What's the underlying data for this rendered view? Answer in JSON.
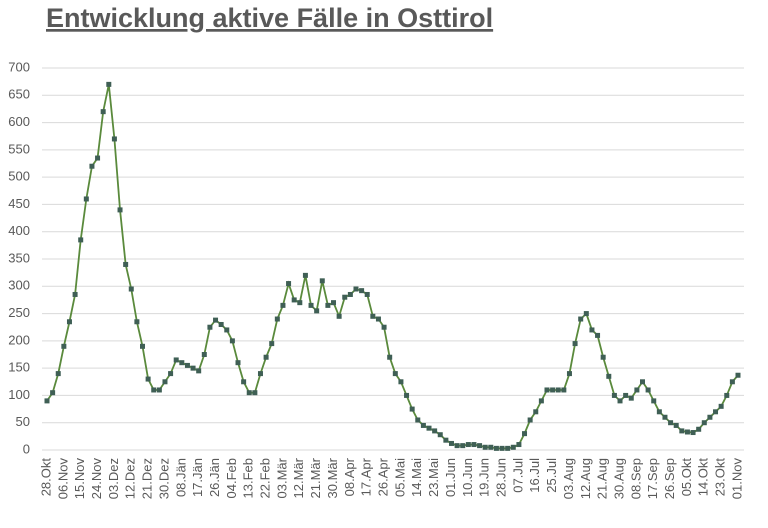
{
  "chart_data": {
    "type": "line",
    "title": "Entwicklung aktive Fälle in Osttirol",
    "categories": [
      "28.Okt",
      null,
      null,
      "06.Nov",
      null,
      null,
      "15.Nov",
      null,
      null,
      "24.Nov",
      null,
      null,
      "03.Dez",
      null,
      null,
      "12.Dez",
      null,
      null,
      "21.Dez",
      null,
      null,
      "30.Dez",
      null,
      null,
      "08.Jän",
      null,
      null,
      "17.Jän",
      null,
      null,
      "26.Jän",
      null,
      null,
      "04.Feb",
      null,
      null,
      "13.Feb",
      null,
      null,
      "22.Feb",
      null,
      null,
      "03.Mär",
      null,
      null,
      "12.Mär",
      null,
      null,
      "21.Mär",
      null,
      null,
      "30.Mär",
      null,
      null,
      "08.Apr",
      null,
      null,
      "17.Apr",
      null,
      null,
      "26.Apr",
      null,
      null,
      "05.Mai",
      null,
      null,
      "14.Mai",
      null,
      null,
      "23.Mai",
      null,
      null,
      "01.Jun",
      null,
      null,
      "10.Jun",
      null,
      null,
      "19.Jun",
      null,
      null,
      "28.Jun",
      null,
      null,
      "07.Jul",
      null,
      null,
      "16.Jul",
      null,
      null,
      "25.Jul",
      null,
      null,
      "03.Aug",
      null,
      null,
      "12.Aug",
      null,
      null,
      "21.Aug",
      null,
      null,
      "30.Aug",
      null,
      null,
      "08.Sep",
      null,
      null,
      "17.Sep",
      null,
      null,
      "26.Sep",
      null,
      null,
      "05.Okt",
      null,
      null,
      "14.Okt",
      null,
      null,
      "23.Okt",
      null,
      null,
      "01.Nov"
    ],
    "values": [
      90,
      105,
      140,
      190,
      235,
      285,
      385,
      460,
      520,
      535,
      620,
      670,
      570,
      440,
      340,
      295,
      235,
      190,
      130,
      110,
      110,
      125,
      140,
      165,
      160,
      155,
      150,
      145,
      175,
      225,
      238,
      230,
      220,
      200,
      160,
      125,
      105,
      105,
      140,
      170,
      195,
      240,
      265,
      305,
      275,
      270,
      320,
      265,
      255,
      310,
      265,
      270,
      245,
      280,
      285,
      295,
      292,
      285,
      245,
      240,
      225,
      170,
      140,
      125,
      100,
      75,
      55,
      45,
      40,
      35,
      28,
      18,
      12,
      8,
      8,
      10,
      10,
      8,
      5,
      5,
      3,
      3,
      3,
      5,
      10,
      30,
      55,
      70,
      90,
      110,
      110,
      110,
      110,
      140,
      195,
      240,
      250,
      220,
      210,
      170,
      135,
      100,
      90,
      100,
      95,
      110,
      125,
      110,
      90,
      70,
      60,
      50,
      45,
      35,
      33,
      32,
      38,
      50,
      60,
      70,
      80,
      100,
      125,
      137
    ],
    "line_color": "#5a8a3c",
    "marker_color": "#3f5f55",
    "ylim": [
      0,
      700
    ],
    "yticks": [
      0,
      50,
      100,
      150,
      200,
      250,
      300,
      350,
      400,
      450,
      500,
      550,
      600,
      650,
      700
    ],
    "grid": true
  }
}
